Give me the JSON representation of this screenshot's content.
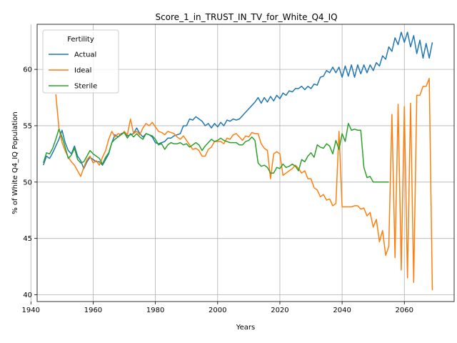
{
  "chart_data": {
    "type": "line",
    "title": "Score_1_in_TRUST_IN_TV_for_White_Q4_IQ",
    "xlabel": "Years",
    "ylabel": "% of White Q4_IQ Population",
    "xlim": [
      1942,
      2076
    ],
    "ylim": [
      39.4,
      64.0
    ],
    "xticks": [
      1940,
      1960,
      1980,
      2000,
      2020,
      2040,
      2060
    ],
    "yticks": [
      40,
      45,
      50,
      55,
      60
    ],
    "grid": true,
    "legend": {
      "title": "Fertility",
      "placement": "top-left",
      "entries": [
        "Actual",
        "Ideal",
        "Sterile"
      ]
    },
    "series": [
      {
        "name": "Actual",
        "color": "#1f77b4",
        "x": [
          1944,
          1945,
          1946,
          1947,
          1948,
          1949,
          1950,
          1951,
          1952,
          1953,
          1954,
          1955,
          1956,
          1957,
          1958,
          1959,
          1960,
          1961,
          1962,
          1963,
          1964,
          1965,
          1966,
          1967,
          1968,
          1969,
          1970,
          1971,
          1972,
          1973,
          1974,
          1975,
          1976,
          1977,
          1978,
          1979,
          1980,
          1981,
          1982,
          1983,
          1984,
          1985,
          1986,
          1987,
          1988,
          1989,
          1990,
          1991,
          1992,
          1993,
          1994,
          1995,
          1996,
          1997,
          1998,
          1999,
          2000,
          2001,
          2002,
          2003,
          2004,
          2005,
          2006,
          2007,
          2008,
          2009,
          2010,
          2011,
          2012,
          2013,
          2014,
          2015,
          2016,
          2017,
          2018,
          2019,
          2020,
          2021,
          2022,
          2023,
          2024,
          2025,
          2026,
          2027,
          2028,
          2029,
          2030,
          2031,
          2032,
          2033,
          2034,
          2035,
          2036,
          2037,
          2038,
          2039,
          2040,
          2041,
          2042,
          2043,
          2044,
          2045,
          2046,
          2047,
          2048,
          2049,
          2050,
          2051,
          2052,
          2053,
          2054,
          2055,
          2056,
          2057,
          2058,
          2059,
          2060,
          2061,
          2062,
          2063,
          2064,
          2065,
          2066,
          2067,
          2068,
          2069,
          2070
        ],
        "y": [
          51.5,
          52.3,
          52.1,
          52.6,
          53.2,
          53.8,
          54.6,
          53.5,
          52.8,
          52.5,
          53.2,
          52.3,
          51.9,
          51.2,
          51.8,
          52.2,
          52.0,
          51.8,
          51.8,
          51.5,
          52.0,
          52.5,
          53.5,
          54.2,
          54.0,
          54.3,
          54.4,
          54.1,
          54.2,
          54.3,
          54.8,
          54.3,
          54.0,
          54.3,
          54.2,
          54.0,
          53.5,
          53.4,
          53.5,
          53.6,
          53.9,
          53.9,
          54.1,
          54.2,
          54.3,
          55.0,
          55.0,
          55.6,
          55.5,
          55.8,
          55.6,
          55.4,
          55.0,
          55.2,
          54.8,
          55.2,
          54.9,
          55.3,
          55.0,
          55.5,
          55.4,
          55.6,
          55.5,
          55.6,
          55.9,
          56.2,
          56.5,
          56.8,
          57.1,
          57.5,
          57.0,
          57.5,
          57.1,
          57.6,
          57.2,
          57.7,
          57.4,
          57.9,
          57.7,
          58.1,
          58.0,
          58.3,
          58.3,
          58.5,
          58.2,
          58.5,
          58.3,
          58.7,
          58.6,
          59.3,
          59.4,
          59.9,
          59.7,
          60.2,
          59.7,
          60.2,
          59.3,
          60.3,
          59.4,
          60.4,
          59.3,
          60.4,
          59.6,
          60.4,
          59.7,
          60.4,
          59.9,
          60.6,
          60.3,
          61.2,
          60.9,
          62.0,
          61.6,
          62.8,
          62.2,
          63.3,
          62.4,
          63.3,
          62.0,
          63.0,
          61.4,
          62.6,
          61.0,
          62.3,
          61.0,
          62.4,
          null
        ]
      },
      {
        "name": "Ideal",
        "color": "#ff7f0e",
        "x": [
          1948,
          1949,
          1950,
          1951,
          1952,
          1953,
          1954,
          1955,
          1956,
          1957,
          1958,
          1959,
          1960,
          1961,
          1962,
          1963,
          1964,
          1965,
          1966,
          1967,
          1968,
          1969,
          1970,
          1971,
          1972,
          1973,
          1974,
          1975,
          1976,
          1977,
          1978,
          1979,
          1980,
          1981,
          1982,
          1983,
          1984,
          1985,
          1986,
          1987,
          1988,
          1989,
          1990,
          1991,
          1992,
          1993,
          1994,
          1995,
          1996,
          1997,
          1998,
          1999,
          2000,
          2001,
          2002,
          2003,
          2004,
          2005,
          2006,
          2007,
          2008,
          2009,
          2010,
          2011,
          2012,
          2013,
          2014,
          2015,
          2016,
          2017,
          2018,
          2019,
          2020,
          2021,
          2022,
          2023,
          2024,
          2025,
          2026,
          2027,
          2028,
          2029,
          2030,
          2031,
          2032,
          2033,
          2034,
          2035,
          2036,
          2037,
          2038,
          2039,
          2040,
          2041,
          2042,
          2043,
          2044,
          2045,
          2046,
          2047,
          2048,
          2049,
          2050,
          2051,
          2052,
          2053,
          2054,
          2055,
          2056,
          2057,
          2058,
          2059,
          2060,
          2061,
          2062,
          2063,
          2064,
          2065,
          2066,
          2067,
          2068,
          2069,
          2070
        ],
        "y": [
          57.8,
          54.8,
          53.5,
          52.8,
          52.2,
          51.8,
          51.5,
          51.0,
          50.5,
          51.3,
          52.0,
          52.3,
          51.7,
          51.9,
          51.5,
          52.2,
          52.8,
          53.8,
          54.5,
          54.0,
          54.3,
          54.2,
          54.5,
          54.2,
          55.6,
          54.3,
          54.5,
          54.2,
          54.8,
          55.2,
          55.0,
          55.3,
          54.9,
          54.5,
          54.4,
          54.2,
          54.5,
          54.4,
          54.3,
          54.0,
          53.8,
          54.1,
          53.7,
          53.3,
          52.9,
          53.0,
          52.8,
          52.3,
          52.3,
          52.9,
          53.1,
          53.6,
          53.6,
          53.6,
          53.4,
          53.9,
          53.8,
          54.2,
          54.3,
          54.0,
          53.7,
          54.1,
          54.0,
          54.4,
          54.3,
          54.3,
          53.4,
          53.0,
          52.8,
          50.3,
          52.5,
          52.7,
          52.5,
          50.6,
          50.8,
          51.0,
          51.2,
          51.5,
          51.2,
          50.8,
          51.0,
          50.3,
          50.3,
          49.5,
          49.3,
          48.7,
          48.9,
          48.4,
          48.5,
          47.9,
          48.1,
          54.5,
          47.8,
          47.8,
          47.8,
          47.8,
          47.9,
          47.9,
          47.6,
          47.7,
          47.0,
          47.3,
          46.0,
          46.7,
          44.7,
          45.7,
          43.5,
          44.3,
          56.0,
          43.3,
          56.9,
          42.2,
          56.7,
          41.5,
          57.0,
          41.1,
          57.7,
          57.7,
          58.5,
          58.5,
          59.2,
          40.4,
          null
        ],
        "gaps_note": ""
      },
      {
        "name": "Sterile",
        "color": "#2ca02c",
        "x": [
          1944,
          1945,
          1946,
          1947,
          1948,
          1949,
          1950,
          1951,
          1952,
          1953,
          1954,
          1955,
          1956,
          1957,
          1958,
          1959,
          1960,
          1961,
          1962,
          1963,
          1964,
          1965,
          1966,
          1967,
          1968,
          1969,
          1970,
          1971,
          1972,
          1973,
          1974,
          1975,
          1976,
          1977,
          1978,
          1979,
          1980,
          1981,
          1982,
          1983,
          1984,
          1985,
          1986,
          1987,
          1988,
          1989,
          1990,
          1991,
          1992,
          1993,
          1994,
          1995,
          1996,
          1997,
          1998,
          1999,
          2000,
          2001,
          2002,
          2003,
          2004,
          2005,
          2006,
          2007,
          2008,
          2009,
          2010,
          2011,
          2012,
          2013,
          2014,
          2015,
          2016,
          2017,
          2018,
          2019,
          2020,
          2021,
          2022,
          2023,
          2024,
          2025,
          2026,
          2027,
          2028,
          2029,
          2030,
          2031,
          2032,
          2033,
          2034,
          2035,
          2036,
          2037,
          2038,
          2039,
          2040,
          2041,
          2042,
          2043,
          2044,
          2045,
          2046,
          2047,
          2048,
          2049,
          2050,
          2051,
          2052,
          2053,
          2054,
          2055
        ],
        "y": [
          51.7,
          52.6,
          52.5,
          53.0,
          53.8,
          54.7,
          54.0,
          53.1,
          52.1,
          52.4,
          53.0,
          52.0,
          51.7,
          51.8,
          52.3,
          52.8,
          52.5,
          52.3,
          52.1,
          51.6,
          52.2,
          52.6,
          53.5,
          53.8,
          54.0,
          54.2,
          54.4,
          53.9,
          54.3,
          54.0,
          54.3,
          54.0,
          53.8,
          54.3,
          54.2,
          54.1,
          53.8,
          53.3,
          53.4,
          52.9,
          53.3,
          53.5,
          53.4,
          53.4,
          53.5,
          53.3,
          53.4,
          53.1,
          53.3,
          53.5,
          53.3,
          52.8,
          53.2,
          53.5,
          53.8,
          53.6,
          53.7,
          53.9,
          53.7,
          53.6,
          53.5,
          53.5,
          53.5,
          53.3,
          53.3,
          53.6,
          53.7,
          54.0,
          53.7,
          51.7,
          51.4,
          51.5,
          51.3,
          50.8,
          50.8,
          51.3,
          51.2,
          51.6,
          51.3,
          51.4,
          51.6,
          51.4,
          51.0,
          52.0,
          51.8,
          52.3,
          52.6,
          52.2,
          53.3,
          53.1,
          53.0,
          53.4,
          53.2,
          52.5,
          53.7,
          52.9,
          54.3,
          53.6,
          55.2,
          54.6,
          54.7,
          54.6,
          54.6,
          51.3,
          50.4,
          50.5,
          50.0,
          50.0,
          50.0,
          50.0,
          50.0,
          50.0
        ]
      }
    ]
  }
}
